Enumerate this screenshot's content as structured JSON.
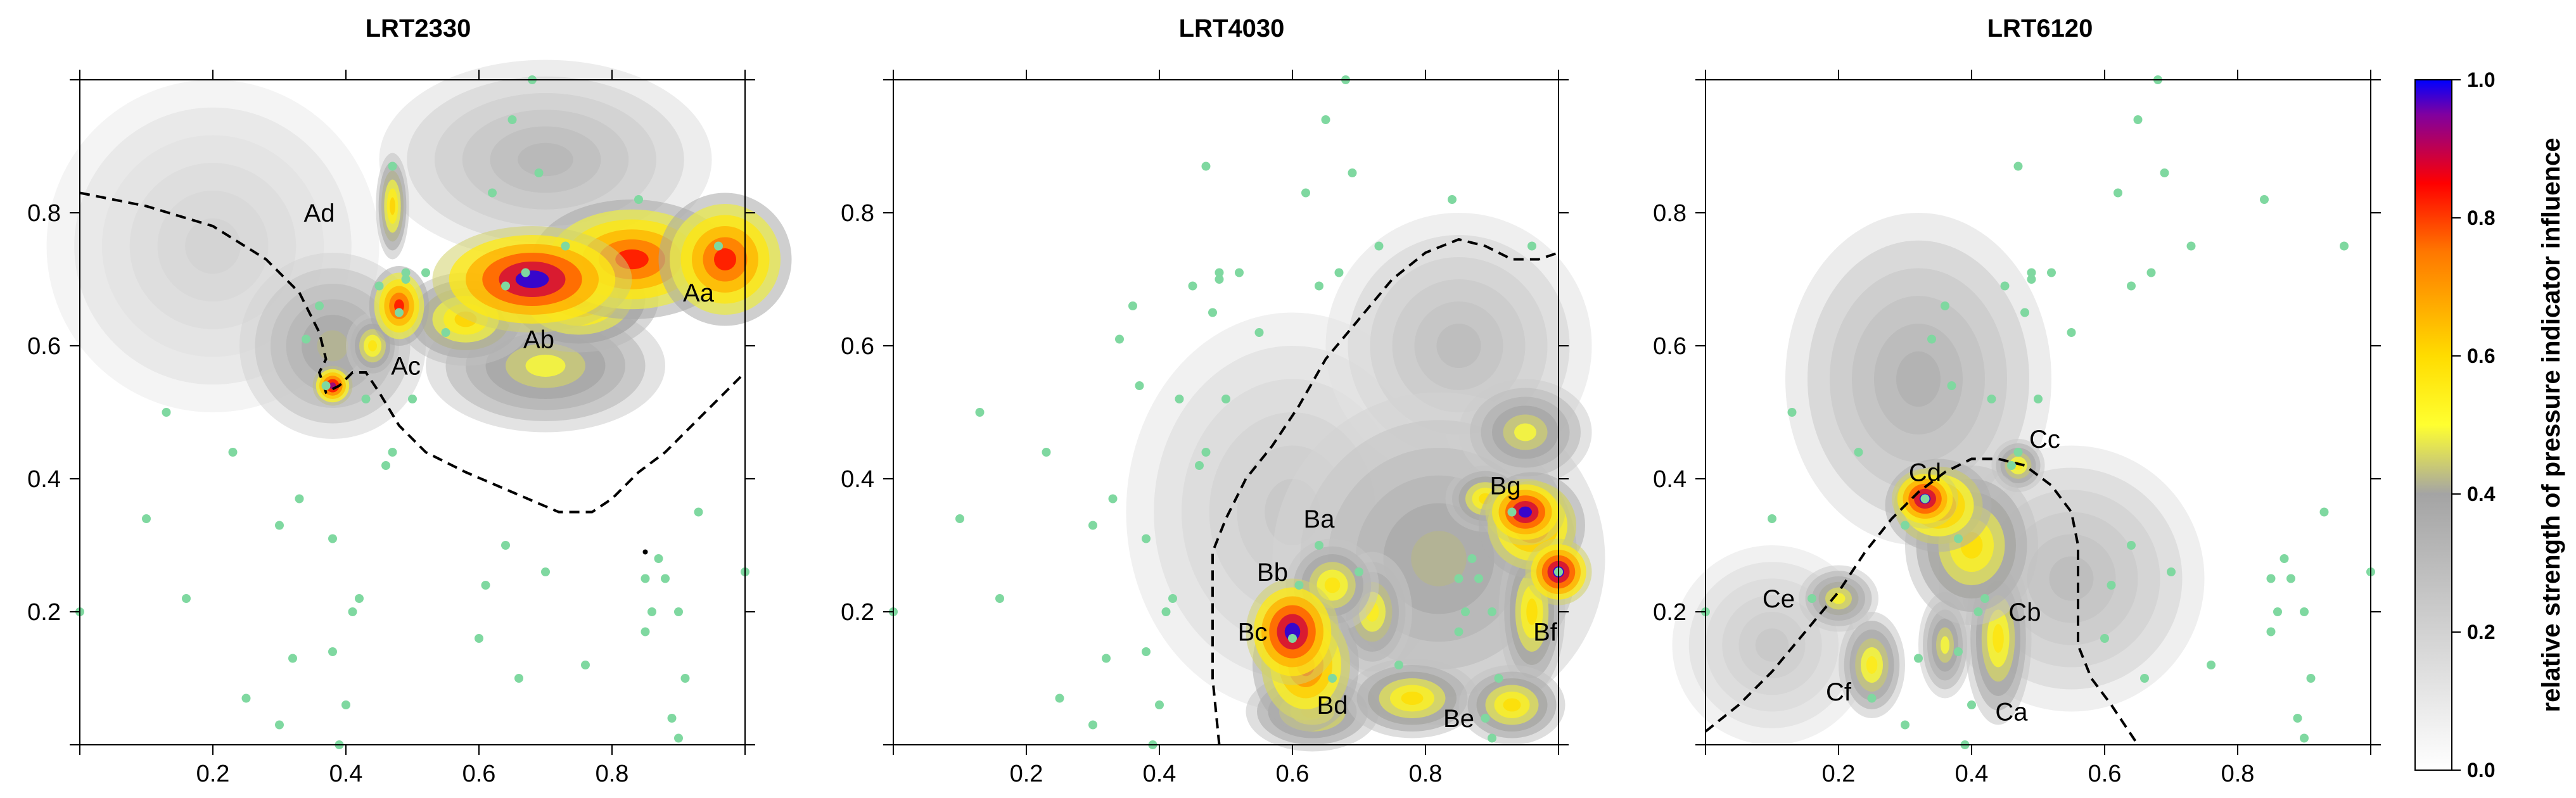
{
  "chart_data": {
    "type": "heatmap",
    "colorbar": {
      "label": "relative strength of pressure indicator influence",
      "ticks": [
        "0.0",
        "0.2",
        "0.4",
        "0.6",
        "0.8",
        "1.0"
      ],
      "range": [
        0,
        1
      ],
      "colors": [
        "#ffffff",
        "#c8c8c8",
        "#a4a4a4",
        "#ffff00",
        "#ff7800",
        "#ff0000",
        "#0000ff"
      ]
    },
    "x_ticks": [
      "0.2",
      "0.4",
      "0.6",
      "0.8"
    ],
    "y_ticks": [
      "0.2",
      "0.4",
      "0.6",
      "0.8"
    ],
    "xlim": [
      0,
      1
    ],
    "ylim": [
      0,
      1
    ],
    "points_color": "#7fd8a0",
    "sample_points": [
      [
        0.0,
        0.2
      ],
      [
        0.1,
        0.34
      ],
      [
        0.13,
        0.5
      ],
      [
        0.16,
        0.22
      ],
      [
        0.23,
        0.44
      ],
      [
        0.25,
        0.07
      ],
      [
        0.3,
        0.33
      ],
      [
        0.3,
        0.03
      ],
      [
        0.32,
        0.13
      ],
      [
        0.33,
        0.37
      ],
      [
        0.34,
        0.61
      ],
      [
        0.36,
        0.66
      ],
      [
        0.37,
        0.54
      ],
      [
        0.38,
        0.14
      ],
      [
        0.38,
        0.31
      ],
      [
        0.39,
        0.0
      ],
      [
        0.4,
        0.06
      ],
      [
        0.41,
        0.2
      ],
      [
        0.42,
        0.22
      ],
      [
        0.43,
        0.52
      ],
      [
        0.45,
        0.69
      ],
      [
        0.46,
        0.42
      ],
      [
        0.47,
        0.44
      ],
      [
        0.47,
        0.87
      ],
      [
        0.48,
        0.65
      ],
      [
        0.49,
        0.7
      ],
      [
        0.49,
        0.71
      ],
      [
        0.5,
        0.52
      ],
      [
        0.52,
        0.71
      ],
      [
        0.55,
        0.62
      ],
      [
        0.6,
        0.16
      ],
      [
        0.61,
        0.24
      ],
      [
        0.62,
        0.83
      ],
      [
        0.64,
        0.3
      ],
      [
        0.64,
        0.69
      ],
      [
        0.65,
        0.94
      ],
      [
        0.66,
        0.1
      ],
      [
        0.67,
        0.71
      ],
      [
        0.69,
        0.86
      ],
      [
        0.7,
        0.26
      ],
      [
        0.73,
        0.75
      ],
      [
        0.76,
        0.12
      ],
      [
        0.84,
        0.82
      ],
      [
        0.85,
        0.17
      ],
      [
        0.85,
        0.25
      ],
      [
        0.86,
        0.2
      ],
      [
        0.87,
        0.28
      ],
      [
        0.88,
        0.25
      ],
      [
        0.89,
        0.04
      ],
      [
        0.9,
        0.01
      ],
      [
        0.9,
        0.2
      ],
      [
        0.91,
        0.1
      ],
      [
        0.93,
        0.35
      ],
      [
        0.96,
        0.75
      ],
      [
        1.0,
        0.26
      ],
      [
        0.68,
        1.0
      ]
    ],
    "panels": [
      {
        "title": "LRT2330",
        "hotspots": [
          {
            "x": 0.68,
            "y": 0.7,
            "rx": 0.15,
            "ry": 0.08,
            "v": 1.0
          },
          {
            "x": 0.83,
            "y": 0.73,
            "rx": 0.15,
            "ry": 0.09,
            "v": 0.85
          },
          {
            "x": 0.97,
            "y": 0.73,
            "rx": 0.1,
            "ry": 0.1,
            "v": 0.85
          },
          {
            "x": 0.75,
            "y": 0.67,
            "rx": 0.12,
            "ry": 0.08,
            "v": 0.7
          },
          {
            "x": 0.58,
            "y": 0.64,
            "rx": 0.1,
            "ry": 0.07,
            "v": 0.62
          },
          {
            "x": 0.48,
            "y": 0.66,
            "rx": 0.045,
            "ry": 0.06,
            "v": 0.85
          },
          {
            "x": 0.47,
            "y": 0.81,
            "rx": 0.025,
            "ry": 0.08,
            "v": 0.62
          },
          {
            "x": 0.38,
            "y": 0.54,
            "rx": 0.03,
            "ry": 0.03,
            "v": 0.95
          },
          {
            "x": 0.44,
            "y": 0.6,
            "rx": 0.04,
            "ry": 0.05,
            "v": 0.58
          },
          {
            "x": 0.7,
            "y": 0.57,
            "rx": 0.18,
            "ry": 0.1,
            "v": 0.5
          },
          {
            "x": 0.38,
            "y": 0.6,
            "rx": 0.14,
            "ry": 0.14,
            "v": 0.42
          },
          {
            "x": 0.7,
            "y": 0.88,
            "rx": 0.25,
            "ry": 0.15,
            "v": 0.32
          },
          {
            "x": 0.2,
            "y": 0.75,
            "rx": 0.25,
            "ry": 0.25,
            "v": 0.2
          }
        ],
        "contour": [
          [
            0.0,
            0.83
          ],
          [
            0.1,
            0.81
          ],
          [
            0.2,
            0.78
          ],
          [
            0.28,
            0.73
          ],
          [
            0.33,
            0.68
          ],
          [
            0.36,
            0.62
          ],
          [
            0.37,
            0.58
          ],
          [
            0.36,
            0.56
          ],
          [
            0.37,
            0.53
          ],
          [
            0.39,
            0.54
          ],
          [
            0.41,
            0.56
          ],
          [
            0.43,
            0.56
          ],
          [
            0.45,
            0.53
          ],
          [
            0.48,
            0.48
          ],
          [
            0.52,
            0.44
          ],
          [
            0.58,
            0.41
          ],
          [
            0.65,
            0.38
          ],
          [
            0.72,
            0.35
          ],
          [
            0.77,
            0.35
          ],
          [
            0.8,
            0.37
          ],
          [
            0.84,
            0.41
          ],
          [
            0.88,
            0.44
          ],
          [
            0.93,
            0.49
          ],
          [
            0.97,
            0.53
          ],
          [
            1.0,
            0.56
          ]
        ],
        "labels": [
          {
            "text": "Aa",
            "x": 0.93,
            "y": 0.68
          },
          {
            "text": "Ab",
            "x": 0.69,
            "y": 0.61
          },
          {
            "text": "Ac",
            "x": 0.49,
            "y": 0.57
          },
          {
            "text": "Ad",
            "x": 0.36,
            "y": 0.8
          }
        ],
        "extra_marks": [
          [
            0.85,
            0.29
          ]
        ]
      },
      {
        "title": "LRT4030",
        "hotspots": [
          {
            "x": 0.6,
            "y": 0.17,
            "rx": 0.07,
            "ry": 0.08,
            "v": 1.0
          },
          {
            "x": 0.62,
            "y": 0.12,
            "rx": 0.08,
            "ry": 0.1,
            "v": 0.8
          },
          {
            "x": 0.66,
            "y": 0.24,
            "rx": 0.07,
            "ry": 0.07,
            "v": 0.58
          },
          {
            "x": 0.63,
            "y": 0.05,
            "rx": 0.1,
            "ry": 0.06,
            "v": 0.58
          },
          {
            "x": 0.95,
            "y": 0.35,
            "rx": 0.06,
            "ry": 0.05,
            "v": 1.0
          },
          {
            "x": 1.0,
            "y": 0.26,
            "rx": 0.05,
            "ry": 0.05,
            "v": 1.0
          },
          {
            "x": 0.96,
            "y": 0.33,
            "rx": 0.08,
            "ry": 0.08,
            "v": 0.8
          },
          {
            "x": 0.89,
            "y": 0.37,
            "rx": 0.06,
            "ry": 0.05,
            "v": 0.6
          },
          {
            "x": 0.96,
            "y": 0.2,
            "rx": 0.05,
            "ry": 0.12,
            "v": 0.6
          },
          {
            "x": 0.78,
            "y": 0.07,
            "rx": 0.1,
            "ry": 0.06,
            "v": 0.6
          },
          {
            "x": 0.93,
            "y": 0.06,
            "rx": 0.08,
            "ry": 0.06,
            "v": 0.6
          },
          {
            "x": 0.72,
            "y": 0.2,
            "rx": 0.06,
            "ry": 0.09,
            "v": 0.55
          },
          {
            "x": 0.95,
            "y": 0.47,
            "rx": 0.1,
            "ry": 0.08,
            "v": 0.5
          },
          {
            "x": 0.82,
            "y": 0.28,
            "rx": 0.25,
            "ry": 0.25,
            "v": 0.42
          },
          {
            "x": 0.85,
            "y": 0.6,
            "rx": 0.2,
            "ry": 0.2,
            "v": 0.3
          },
          {
            "x": 0.6,
            "y": 0.35,
            "rx": 0.25,
            "ry": 0.3,
            "v": 0.25
          }
        ],
        "contour": [
          [
            0.49,
            0.0
          ],
          [
            0.48,
            0.1
          ],
          [
            0.48,
            0.2
          ],
          [
            0.48,
            0.29
          ],
          [
            0.5,
            0.34
          ],
          [
            0.53,
            0.4
          ],
          [
            0.57,
            0.45
          ],
          [
            0.61,
            0.51
          ],
          [
            0.65,
            0.58
          ],
          [
            0.7,
            0.64
          ],
          [
            0.75,
            0.7
          ],
          [
            0.8,
            0.74
          ],
          [
            0.85,
            0.76
          ],
          [
            0.89,
            0.75
          ],
          [
            0.93,
            0.73
          ],
          [
            0.97,
            0.73
          ],
          [
            1.0,
            0.74
          ]
        ],
        "labels": [
          {
            "text": "Ba",
            "x": 0.64,
            "y": 0.34
          },
          {
            "text": "Bb",
            "x": 0.57,
            "y": 0.26
          },
          {
            "text": "Bc",
            "x": 0.54,
            "y": 0.17
          },
          {
            "text": "Bd",
            "x": 0.66,
            "y": 0.06
          },
          {
            "text": "Be",
            "x": 0.85,
            "y": 0.04
          },
          {
            "text": "Bf",
            "x": 0.98,
            "y": 0.17
          },
          {
            "text": "Bg",
            "x": 0.92,
            "y": 0.39
          }
        ],
        "extra_marks": []
      },
      {
        "title": "LRT6120",
        "hotspots": [
          {
            "x": 0.33,
            "y": 0.37,
            "rx": 0.05,
            "ry": 0.045,
            "v": 1.0
          },
          {
            "x": 0.35,
            "y": 0.36,
            "rx": 0.08,
            "ry": 0.07,
            "v": 0.78
          },
          {
            "x": 0.4,
            "y": 0.3,
            "rx": 0.1,
            "ry": 0.12,
            "v": 0.6
          },
          {
            "x": 0.44,
            "y": 0.16,
            "rx": 0.05,
            "ry": 0.13,
            "v": 0.58
          },
          {
            "x": 0.25,
            "y": 0.12,
            "rx": 0.05,
            "ry": 0.08,
            "v": 0.56
          },
          {
            "x": 0.2,
            "y": 0.22,
            "rx": 0.06,
            "ry": 0.05,
            "v": 0.52
          },
          {
            "x": 0.47,
            "y": 0.42,
            "rx": 0.04,
            "ry": 0.04,
            "v": 0.56
          },
          {
            "x": 0.36,
            "y": 0.15,
            "rx": 0.04,
            "ry": 0.08,
            "v": 0.5
          },
          {
            "x": 0.32,
            "y": 0.55,
            "rx": 0.2,
            "ry": 0.25,
            "v": 0.35
          },
          {
            "x": 0.55,
            "y": 0.25,
            "rx": 0.2,
            "ry": 0.2,
            "v": 0.3
          },
          {
            "x": 0.1,
            "y": 0.15,
            "rx": 0.15,
            "ry": 0.15,
            "v": 0.25
          }
        ],
        "contour": [
          [
            0.0,
            0.02
          ],
          [
            0.05,
            0.06
          ],
          [
            0.1,
            0.11
          ],
          [
            0.15,
            0.17
          ],
          [
            0.2,
            0.23
          ],
          [
            0.24,
            0.29
          ],
          [
            0.28,
            0.34
          ],
          [
            0.32,
            0.38
          ],
          [
            0.36,
            0.41
          ],
          [
            0.4,
            0.43
          ],
          [
            0.44,
            0.43
          ],
          [
            0.48,
            0.42
          ],
          [
            0.52,
            0.39
          ],
          [
            0.55,
            0.35
          ],
          [
            0.56,
            0.3
          ],
          [
            0.56,
            0.25
          ],
          [
            0.56,
            0.2
          ],
          [
            0.56,
            0.15
          ],
          [
            0.58,
            0.1
          ],
          [
            0.61,
            0.06
          ],
          [
            0.63,
            0.03
          ],
          [
            0.65,
            0.0
          ]
        ],
        "labels": [
          {
            "text": "Ca",
            "x": 0.46,
            "y": 0.05
          },
          {
            "text": "Cb",
            "x": 0.48,
            "y": 0.2
          },
          {
            "text": "Cc",
            "x": 0.51,
            "y": 0.46
          },
          {
            "text": "Cd",
            "x": 0.33,
            "y": 0.41
          },
          {
            "text": "Ce",
            "x": 0.11,
            "y": 0.22
          },
          {
            "text": "Cf",
            "x": 0.2,
            "y": 0.08
          }
        ],
        "extra_marks": []
      }
    ]
  }
}
